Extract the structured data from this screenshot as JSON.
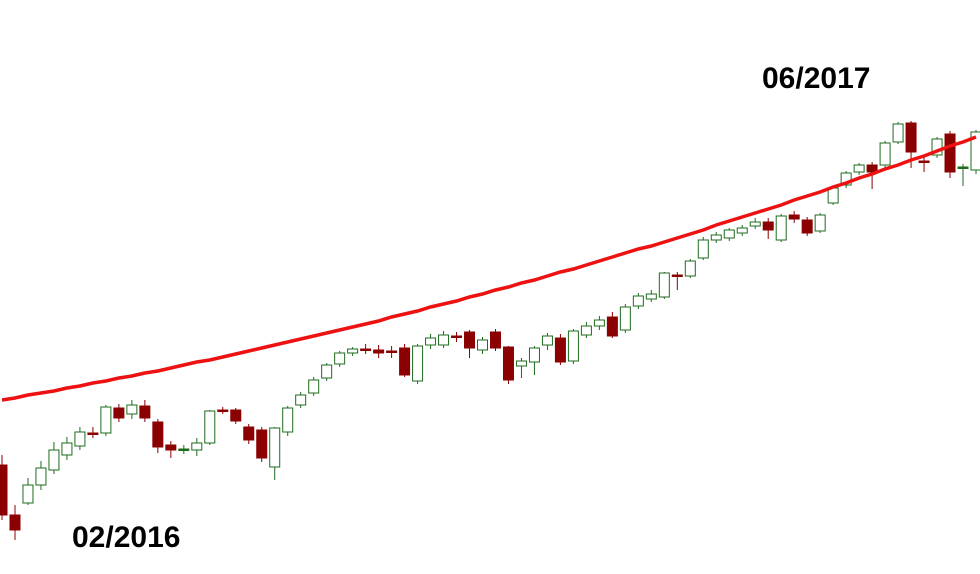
{
  "chart_data": {
    "type": "candlestick",
    "annotations": [
      "02/2016",
      "06/2017"
    ],
    "categories": [
      null,
      null,
      null,
      null,
      null,
      null,
      null,
      null,
      null,
      null,
      null,
      null,
      null,
      null,
      null,
      null,
      null,
      null,
      null,
      null,
      null,
      null,
      null,
      null,
      null,
      null,
      null,
      null,
      null,
      null,
      null,
      null,
      null,
      null,
      null,
      null,
      null,
      null,
      null,
      null,
      null,
      null,
      null,
      null,
      null,
      null,
      null,
      null,
      null,
      null,
      null,
      null,
      null,
      null,
      null,
      null,
      null,
      null,
      null,
      null,
      null,
      null,
      null,
      null,
      null,
      null,
      null,
      null,
      null,
      null,
      null,
      null,
      null,
      null,
      null,
      null
    ],
    "open": [
      109,
      59,
      71,
      89,
      104,
      119,
      128,
      141,
      141,
      166,
      160,
      168,
      152,
      129,
      125,
      124,
      131,
      164,
      164,
      147,
      144,
      107,
      142,
      169,
      181,
      196,
      210,
      221,
      225,
      224,
      223,
      226,
      193,
      229,
      229,
      238,
      242,
      224,
      242,
      227,
      208,
      212,
      229,
      236,
      213,
      239,
      248,
      257,
      244,
      268,
      275,
      277,
      299,
      298,
      316,
      334,
      336,
      341,
      348,
      352,
      334,
      359,
      354,
      343,
      371,
      389,
      402,
      409,
      409,
      432,
      451,
      413,
      419,
      440,
      406,
      404
    ],
    "high": [
      119,
      69,
      96,
      113,
      132,
      137,
      147,
      147,
      169,
      170,
      174,
      174,
      155,
      133,
      129,
      136,
      164,
      167,
      166,
      150,
      147,
      147,
      168,
      182,
      197,
      211,
      223,
      227,
      230,
      229,
      228,
      230,
      230,
      240,
      243,
      242,
      244,
      237,
      245,
      228,
      216,
      228,
      241,
      240,
      245,
      252,
      258,
      262,
      270,
      281,
      284,
      302,
      302,
      315,
      337,
      342,
      346,
      349,
      356,
      356,
      360,
      363,
      357,
      361,
      388,
      403,
      411,
      412,
      433,
      452,
      453,
      418,
      437,
      443,
      410,
      444
    ],
    "low": [
      54,
      34,
      69,
      84,
      100,
      114,
      124,
      136,
      138,
      152,
      155,
      152,
      121,
      116,
      120,
      118,
      129,
      160,
      150,
      130,
      112,
      94,
      138,
      166,
      178,
      193,
      207,
      218,
      220,
      216,
      216,
      197,
      190,
      225,
      226,
      232,
      216,
      220,
      223,
      190,
      196,
      199,
      224,
      209,
      210,
      236,
      244,
      236,
      241,
      265,
      272,
      275,
      284,
      296,
      314,
      331,
      333,
      338,
      345,
      335,
      332,
      351,
      338,
      341,
      369,
      386,
      399,
      385,
      406,
      430,
      406,
      402,
      416,
      396,
      388,
      400
    ],
    "close": [
      59,
      44,
      89,
      106,
      124,
      131,
      142,
      140,
      167,
      156,
      169,
      156,
      127,
      124,
      125,
      131,
      163,
      163,
      153,
      134,
      116,
      146,
      166,
      179,
      194,
      209,
      221,
      225,
      224,
      221,
      222,
      199,
      228,
      236,
      239,
      237,
      226,
      234,
      226,
      194,
      213,
      226,
      238,
      212,
      243,
      248,
      254,
      238,
      267,
      278,
      280,
      301,
      298,
      313,
      334,
      339,
      344,
      346,
      352,
      344,
      358,
      355,
      341,
      359,
      386,
      401,
      409,
      402,
      431,
      450,
      422,
      412,
      435,
      402,
      407,
      442
    ],
    "up_color": "#1e6b1e",
    "down_color": "#8b0000",
    "doji_up_fill": "#1e6b1e",
    "overlay": {
      "type": "line",
      "color": "#ee1111",
      "values": [
        174,
        176,
        179,
        181,
        183,
        186,
        188,
        191,
        193,
        196,
        198,
        201,
        203,
        206,
        209,
        212,
        214,
        217,
        220,
        223,
        226,
        229,
        232,
        235,
        238,
        241,
        244,
        247,
        250,
        253,
        257,
        260,
        263,
        267,
        270,
        273,
        277,
        280,
        284,
        287,
        291,
        294,
        298,
        302,
        305,
        309,
        313,
        317,
        321,
        325,
        328,
        332,
        336,
        340,
        344,
        349,
        353,
        357,
        361,
        365,
        369,
        374,
        378,
        382,
        387,
        391,
        396,
        400,
        405,
        409,
        414,
        418,
        423,
        428,
        432,
        437
      ]
    },
    "ylim": [
      0,
      574
    ]
  }
}
